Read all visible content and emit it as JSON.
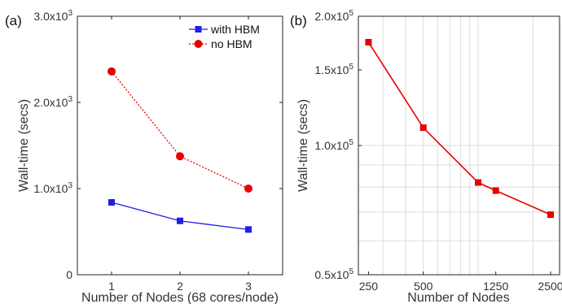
{
  "chart_data": [
    {
      "panel_label": "(a)",
      "type": "line",
      "xlabel": "Number of Nodes (68 cores/node)",
      "ylabel": "Wall-time (secs)",
      "x": [
        1,
        2,
        3
      ],
      "xlim": [
        0.5,
        3.5
      ],
      "ylim": [
        0,
        3000
      ],
      "x_ticks": [
        "1",
        "2",
        "3"
      ],
      "y_ticks": [
        {
          "value": 0,
          "base": "0",
          "exp": ""
        },
        {
          "value": 1000,
          "base": "1.0x10",
          "exp": "3"
        },
        {
          "value": 2000,
          "base": "2.0x10",
          "exp": "3"
        },
        {
          "value": 3000,
          "base": "3.0x10",
          "exp": "3"
        }
      ],
      "grid": false,
      "legend_position": "top-right",
      "series": [
        {
          "name": "with HBM",
          "values": [
            840,
            625,
            525
          ],
          "color": "#1f1fe6",
          "line": "solid",
          "marker": "square"
        },
        {
          "name": "no HBM",
          "values": [
            2360,
            1375,
            1000
          ],
          "color": "#e60000",
          "line": "dotted",
          "marker": "circle"
        }
      ]
    },
    {
      "panel_label": "(b)",
      "type": "line",
      "xlabel": "Number of Nodes",
      "ylabel": "Wall-time (secs)",
      "x_scale": "log",
      "y_scale": "log",
      "x": [
        250,
        500,
        1000,
        1250,
        2500
      ],
      "xlim": [
        220,
        2800
      ],
      "ylim": [
        50000,
        200000
      ],
      "x_ticks": [
        {
          "value": 250,
          "label": "250"
        },
        {
          "value": 500,
          "label": "500"
        },
        {
          "value": 1250,
          "label": "1250"
        },
        {
          "value": 2500,
          "label": "2500"
        }
      ],
      "y_ticks": [
        {
          "value": 50000,
          "base": "0.5x10",
          "exp": "5"
        },
        {
          "value": 100000,
          "base": "1.0x10",
          "exp": "5"
        },
        {
          "value": 150000,
          "base": "1.5x10",
          "exp": "5"
        },
        {
          "value": 200000,
          "base": "2.0x10",
          "exp": "5"
        }
      ],
      "grid": true,
      "series": [
        {
          "values": [
            174000,
            110000,
            82000,
            78500,
            69000
          ],
          "color": "#e60000",
          "line": "solid",
          "marker": "square"
        }
      ]
    }
  ]
}
